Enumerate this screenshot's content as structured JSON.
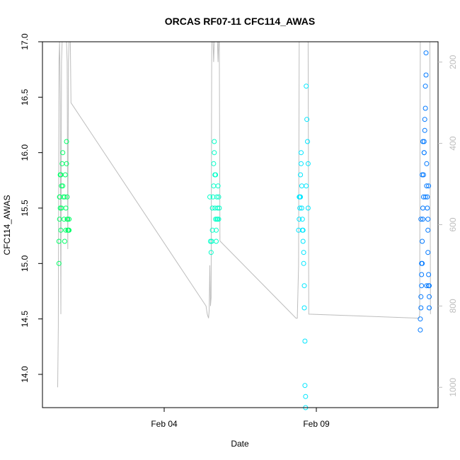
{
  "chart_data": {
    "type": "scatter",
    "title": "ORCAS RF07-11 CFC114_AWAS",
    "xlabel": "Date",
    "ylabel": "CFC114_AWAS",
    "x_unit": "date (2016)",
    "xlim": [
      "Jan 31",
      "Feb 13"
    ],
    "ylim": [
      13.7,
      17.0
    ],
    "x_ticks": [
      {
        "value": "Feb 04",
        "label": "Feb 04"
      },
      {
        "value": "Feb 09",
        "label": "Feb 09"
      }
    ],
    "y_ticks": [
      14.0,
      14.5,
      15.0,
      15.5,
      16.0,
      16.5,
      17.0
    ],
    "y2_ticks": [
      200,
      400,
      600,
      800,
      1000
    ],
    "y2_lim": [
      1050,
      150
    ],
    "y2_reversed": true,
    "y2_color": "#bdbdbd",
    "grid": false,
    "series": [
      {
        "color": "#00ff66",
        "points": [
          [
            "Jan 31 13:00",
            15.0
          ],
          [
            "Jan 31 13:00",
            15.2
          ],
          [
            "Jan 31 13:30",
            15.4
          ],
          [
            "Jan 31 13:30",
            15.6
          ],
          [
            "Jan 31 14:00",
            15.8
          ],
          [
            "Jan 31 14:00",
            15.5
          ],
          [
            "Jan 31 14:30",
            15.3
          ],
          [
            "Jan 31 15:00",
            15.7
          ],
          [
            "Jan 31 15:30",
            15.9
          ],
          [
            "Jan 31 16:00",
            16.0
          ],
          [
            "Jan 31 16:30",
            15.6
          ],
          [
            "Jan 31 17:00",
            15.4
          ],
          [
            "Jan 31 17:30",
            15.2
          ],
          [
            "Jan 31 18:00",
            15.8
          ],
          [
            "Jan 31 18:30",
            15.5
          ],
          [
            "Jan 31 19:00",
            16.1
          ],
          [
            "Jan 31 19:00",
            15.9
          ],
          [
            "Jan 31 19:30",
            15.6
          ],
          [
            "Jan 31 20:00",
            15.4
          ],
          [
            "Jan 31 20:00",
            15.3
          ],
          [
            "Jan 31 20:30",
            15.3
          ],
          [
            "Jan 31 21:00",
            15.4
          ],
          [
            "Jan 31 21:00",
            15.3
          ],
          [
            "Jan 31 14:30",
            15.8
          ],
          [
            "Jan 31 15:00",
            15.5
          ],
          [
            "Jan 31 17:30",
            15.6
          ],
          [
            "Jan 31 18:30",
            15.3
          ],
          [
            "Jan 31 19:30",
            15.4
          ],
          [
            "Jan 31 16:00",
            15.7
          ],
          [
            "Jan 31 13:30",
            15.6
          ]
        ]
      },
      {
        "color": "#00ffc8",
        "points": [
          [
            "Feb 05 13:00",
            15.1
          ],
          [
            "Feb 05 13:30",
            15.2
          ],
          [
            "Feb 05 14:00",
            15.3
          ],
          [
            "Feb 05 14:00",
            15.5
          ],
          [
            "Feb 05 14:30",
            15.6
          ],
          [
            "Feb 05 15:00",
            15.7
          ],
          [
            "Feb 05 15:00",
            15.9
          ],
          [
            "Feb 05 15:30",
            16.0
          ],
          [
            "Feb 05 15:30",
            16.1
          ],
          [
            "Feb 05 16:00",
            15.8
          ],
          [
            "Feb 05 16:00",
            15.5
          ],
          [
            "Feb 05 16:30",
            15.4
          ],
          [
            "Feb 05 17:00",
            15.2
          ],
          [
            "Feb 05 17:00",
            15.3
          ],
          [
            "Feb 05 17:30",
            15.6
          ],
          [
            "Feb 05 18:00",
            15.4
          ],
          [
            "Feb 05 18:00",
            15.5
          ],
          [
            "Feb 05 18:30",
            15.7
          ],
          [
            "Feb 05 19:00",
            15.6
          ],
          [
            "Feb 05 19:00",
            15.4
          ],
          [
            "Feb 05 12:00",
            15.6
          ],
          [
            "Feb 05 12:30",
            15.2
          ],
          [
            "Feb 05 16:30",
            15.8
          ],
          [
            "Feb 05 17:30",
            15.4
          ],
          [
            "Feb 05 19:30",
            15.5
          ]
        ]
      },
      {
        "color": "#00e6ff",
        "points": [
          [
            "Feb 08 10:00",
            15.3
          ],
          [
            "Feb 08 10:30",
            15.4
          ],
          [
            "Feb 08 11:00",
            15.6
          ],
          [
            "Feb 08 11:00",
            15.5
          ],
          [
            "Feb 08 11:30",
            15.8
          ],
          [
            "Feb 08 12:00",
            16.0
          ],
          [
            "Feb 08 12:00",
            15.9
          ],
          [
            "Feb 08 12:30",
            15.7
          ],
          [
            "Feb 08 13:00",
            15.4
          ],
          [
            "Feb 08 13:00",
            15.3
          ],
          [
            "Feb 08 13:30",
            15.2
          ],
          [
            "Feb 08 14:00",
            15.1
          ],
          [
            "Feb 08 14:00",
            15.0
          ],
          [
            "Feb 08 14:30",
            14.8
          ],
          [
            "Feb 08 14:30",
            14.6
          ],
          [
            "Feb 08 15:00",
            14.3
          ],
          [
            "Feb 08 15:00",
            13.9
          ],
          [
            "Feb 08 15:30",
            13.8
          ],
          [
            "Feb 08 15:30",
            13.7
          ],
          [
            "Feb 08 16:00",
            16.6
          ],
          [
            "Feb 08 16:30",
            16.3
          ],
          [
            "Feb 08 17:00",
            16.1
          ],
          [
            "Feb 08 17:30",
            15.9
          ],
          [
            "Feb 08 17:30",
            15.5
          ],
          [
            "Feb 08 11:30",
            15.6
          ],
          [
            "Feb 08 12:30",
            15.5
          ],
          [
            "Feb 08 13:30",
            15.3
          ],
          [
            "Feb 08 10:30",
            15.6
          ],
          [
            "Feb 08 16:00",
            15.7
          ]
        ]
      },
      {
        "color": "#0078ff",
        "points": [
          [
            "Feb 12 10:00",
            14.4
          ],
          [
            "Feb 12 10:00",
            14.5
          ],
          [
            "Feb 12 10:30",
            14.6
          ],
          [
            "Feb 12 10:30",
            14.7
          ],
          [
            "Feb 12 11:00",
            14.8
          ],
          [
            "Feb 12 11:00",
            14.9
          ],
          [
            "Feb 12 11:30",
            15.0
          ],
          [
            "Feb 12 11:30",
            15.2
          ],
          [
            "Feb 12 12:00",
            15.4
          ],
          [
            "Feb 12 12:00",
            15.5
          ],
          [
            "Feb 12 12:30",
            15.6
          ],
          [
            "Feb 12 12:30",
            15.8
          ],
          [
            "Feb 12 13:00",
            16.0
          ],
          [
            "Feb 12 13:00",
            16.1
          ],
          [
            "Feb 12 13:30",
            16.2
          ],
          [
            "Feb 12 13:30",
            16.3
          ],
          [
            "Feb 12 14:00",
            16.4
          ],
          [
            "Feb 12 14:00",
            16.6
          ],
          [
            "Feb 12 14:30",
            16.7
          ],
          [
            "Feb 12 14:30",
            16.9
          ],
          [
            "Feb 12 15:00",
            15.9
          ],
          [
            "Feb 12 15:00",
            15.7
          ],
          [
            "Feb 12 15:30",
            15.6
          ],
          [
            "Feb 12 15:30",
            15.5
          ],
          [
            "Feb 12 16:00",
            15.3
          ],
          [
            "Feb 12 16:00",
            15.1
          ],
          [
            "Feb 12 16:30",
            14.9
          ],
          [
            "Feb 12 16:30",
            14.8
          ],
          [
            "Feb 12 17:00",
            14.7
          ],
          [
            "Feb 12 17:00",
            14.6
          ],
          [
            "Feb 12 11:00",
            15.0
          ],
          [
            "Feb 12 11:30",
            15.8
          ],
          [
            "Feb 12 12:00",
            16.1
          ],
          [
            "Feb 12 13:00",
            16.0
          ],
          [
            "Feb 12 14:00",
            15.6
          ],
          [
            "Feb 12 15:00",
            14.8
          ],
          [
            "Feb 12 16:00",
            15.4
          ],
          [
            "Feb 12 16:30",
            15.7
          ],
          [
            "Feb 12 10:30",
            15.4
          ],
          [
            "Feb 12 17:00",
            14.8
          ]
        ]
      }
    ],
    "y2_line": {
      "color": "#bdbdbd",
      "points": [
        [
          "Jan 31 12:00",
          1000
        ],
        [
          "Jan 31 12:30",
          850
        ],
        [
          "Jan 31 13:00",
          200
        ],
        [
          "Jan 31 13:30",
          150
        ],
        [
          "Jan 31 14:00",
          300
        ],
        [
          "Jan 31 14:30",
          820
        ],
        [
          "Jan 31 15:00",
          200
        ],
        [
          "Jan 31 15:30",
          150
        ],
        [
          "Jan 31 16:00",
          150
        ],
        [
          "Jan 31 17:00",
          150
        ],
        [
          "Jan 31 18:00",
          150
        ],
        [
          "Jan 31 19:00",
          150
        ],
        [
          "Jan 31 19:30",
          200
        ],
        [
          "Jan 31 20:00",
          660
        ],
        [
          "Jan 31 20:30",
          200
        ],
        [
          "Jan 31 21:00",
          150
        ],
        [
          "Jan 31 22:00",
          150
        ],
        [
          "Jan 31 22:30",
          300
        ],
        [
          "Feb 05 09:00",
          800
        ],
        [
          "Feb 05 10:00",
          820
        ],
        [
          "Feb 05 11:00",
          830
        ],
        [
          "Feb 05 11:30",
          810
        ],
        [
          "Feb 05 12:00",
          700
        ],
        [
          "Feb 05 12:30",
          800
        ],
        [
          "Feb 05 13:00",
          780
        ],
        [
          "Feb 05 13:30",
          150
        ],
        [
          "Feb 05 14:00",
          150
        ],
        [
          "Feb 05 14:30",
          150
        ],
        [
          "Feb 05 15:00",
          200
        ],
        [
          "Feb 05 15:30",
          150
        ],
        [
          "Feb 05 16:00",
          150
        ],
        [
          "Feb 05 16:30",
          150
        ],
        [
          "Feb 05 17:00",
          150
        ],
        [
          "Feb 05 17:30",
          150
        ],
        [
          "Feb 05 18:00",
          150
        ],
        [
          "Feb 05 18:30",
          200
        ],
        [
          "Feb 05 19:00",
          150
        ],
        [
          "Feb 05 19:30",
          150
        ],
        [
          "Feb 05 20:00",
          640
        ],
        [
          "Feb 08 08:00",
          830
        ],
        [
          "Feb 08 09:00",
          830
        ],
        [
          "Feb 08 10:00",
          700
        ],
        [
          "Feb 08 10:30",
          150
        ],
        [
          "Feb 08 11:00",
          150
        ],
        [
          "Feb 08 11:30",
          150
        ],
        [
          "Feb 08 12:00",
          150
        ],
        [
          "Feb 08 12:30",
          150
        ],
        [
          "Feb 08 13:00",
          150
        ],
        [
          "Feb 08 13:30",
          150
        ],
        [
          "Feb 08 14:00",
          150
        ],
        [
          "Feb 08 14:30",
          150
        ],
        [
          "Feb 08 15:00",
          150
        ],
        [
          "Feb 08 15:30",
          150
        ],
        [
          "Feb 08 16:00",
          150
        ],
        [
          "Feb 08 16:30",
          150
        ],
        [
          "Feb 08 17:00",
          150
        ],
        [
          "Feb 08 17:30",
          150
        ],
        [
          "Feb 08 18:00",
          820
        ],
        [
          "Feb 12 09:00",
          830
        ],
        [
          "Feb 12 09:30",
          820
        ],
        [
          "Feb 12 10:00",
          150
        ],
        [
          "Feb 12 10:30",
          150
        ],
        [
          "Feb 12 11:00",
          150
        ],
        [
          "Feb 12 11:30",
          150
        ],
        [
          "Feb 12 12:00",
          150
        ],
        [
          "Feb 12 12:30",
          150
        ],
        [
          "Feb 12 13:00",
          150
        ],
        [
          "Feb 12 13:30",
          150
        ],
        [
          "Feb 12 14:00",
          150
        ],
        [
          "Feb 12 14:30",
          150
        ],
        [
          "Feb 12 15:00",
          150
        ],
        [
          "Feb 12 15:30",
          150
        ],
        [
          "Feb 12 16:00",
          150
        ],
        [
          "Feb 12 16:30",
          150
        ],
        [
          "Feb 12 17:00",
          150
        ],
        [
          "Feb 12 17:30",
          150
        ],
        [
          "Feb 12 18:00",
          820
        ]
      ]
    }
  }
}
